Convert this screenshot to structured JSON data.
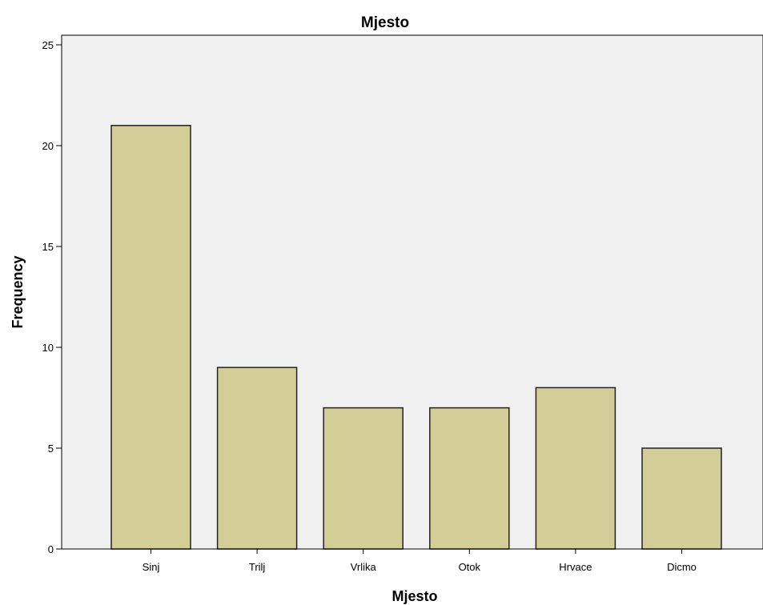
{
  "chart_data": {
    "type": "bar",
    "title": "Mjesto",
    "xlabel": "Mjesto",
    "ylabel": "Frequency",
    "categories": [
      "Sinj",
      "Trilj",
      "Vrlika",
      "Otok",
      "Hrvace",
      "Dicmo"
    ],
    "values": [
      21,
      9,
      7,
      7,
      8,
      5
    ],
    "ylim": [
      0,
      25
    ],
    "yticks": [
      0,
      5,
      10,
      15,
      20,
      25
    ],
    "grid": false,
    "colors": {
      "plot_background": "#f0f0f0",
      "bar_fill": "#d3ce97",
      "bar_stroke": "#222222",
      "axis": "#000000"
    }
  }
}
